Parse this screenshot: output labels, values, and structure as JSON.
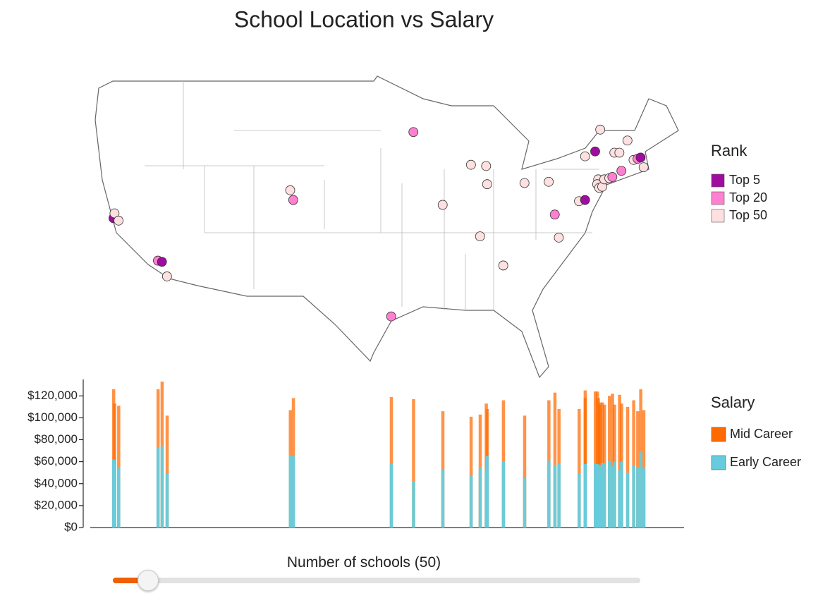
{
  "title": "School Location vs Salary",
  "map": {
    "legend_title": "Rank",
    "tiers": [
      {
        "name": "Top 5",
        "color": "#a00ca0"
      },
      {
        "name": "Top 20",
        "color": "#ff80d0"
      },
      {
        "name": "Top 50",
        "color": "#ffe0e0"
      }
    ],
    "lat": [
      37.7,
      38.1,
      37.5,
      34.2,
      34.1,
      32.9,
      40.0,
      39.2,
      29.6,
      44.8,
      38.8,
      42.1,
      36.2,
      42.0,
      40.5,
      33.8,
      40.6,
      40.7,
      38.0,
      36.1,
      39.1,
      39.2,
      42.8,
      43.2,
      45.0,
      40.9,
      40.5,
      40.2,
      40.3,
      40.9,
      41.0,
      41.1,
      43.1,
      43.1,
      41.6,
      44.1,
      42.5,
      42.6,
      42.7,
      41.9
    ],
    "tier": [
      0,
      2,
      2,
      1,
      0,
      2,
      2,
      1,
      1,
      1,
      2,
      2,
      2,
      2,
      2,
      2,
      2,
      2,
      1,
      2,
      2,
      0,
      2,
      0,
      2,
      2,
      2,
      2,
      2,
      2,
      2,
      1,
      2,
      2,
      1,
      2,
      2,
      1,
      0,
      2
    ]
  },
  "chart_data": {
    "type": "bar",
    "legend_title": "Salary",
    "x": [
      -123.0,
      -122.9,
      -122.5,
      -118.6,
      -118.2,
      -117.7,
      -105.5,
      -105.2,
      -95.5,
      -93.3,
      -90.4,
      -87.6,
      -86.7,
      -86.1,
      -86.0,
      -84.4,
      -82.3,
      -79.9,
      -79.3,
      -78.9,
      -76.9,
      -76.3,
      -76.3,
      -75.3,
      -74.8,
      -75.0,
      -75.1,
      -74.9,
      -74.6,
      -74.4,
      -73.9,
      -73.6,
      -73.4,
      -72.9,
      -72.7,
      -72.1,
      -71.5,
      -71.1,
      -70.8,
      -70.5
    ],
    "xlim": [
      -125.3,
      -66.5
    ],
    "series": [
      {
        "name": "Mid Career",
        "color": "#ff6a00",
        "values": [
          126000,
          113000,
          111000,
          126000,
          133000,
          102000,
          107000,
          118000,
          119000,
          117000,
          106000,
          101000,
          103000,
          113000,
          108000,
          116000,
          102000,
          116000,
          123000,
          108000,
          108000,
          125000,
          118000,
          124000,
          114000,
          118000,
          124000,
          112000,
          114000,
          112000,
          120000,
          122000,
          112000,
          121000,
          113000,
          110000,
          116000,
          106000,
          126000,
          107000
        ]
      },
      {
        "name": "Early Career",
        "color": "#66ccdd",
        "values": [
          62000,
          58000,
          55000,
          73000,
          74000,
          49000,
          66000,
          65000,
          58000,
          42000,
          53000,
          47000,
          55000,
          52000,
          65000,
          60000,
          45000,
          61000,
          57000,
          58000,
          49000,
          56000,
          58000,
          58000,
          57000,
          51000,
          58000,
          50000,
          59000,
          58000,
          61000,
          56000,
          60000,
          52000,
          60000,
          50000,
          57000,
          55000,
          69000,
          54000
        ]
      }
    ],
    "ylim": [
      0,
      135000
    ],
    "yticks": [
      {
        "value": 0,
        "label": "$0"
      },
      {
        "value": 20000,
        "label": "$20,000"
      },
      {
        "value": 40000,
        "label": "$40,000"
      },
      {
        "value": 60000,
        "label": "$60,000"
      },
      {
        "value": 80000,
        "label": "$80,000"
      },
      {
        "value": 100000,
        "label": "$100,000"
      },
      {
        "value": 120000,
        "label": "$120,000"
      }
    ]
  },
  "slider": {
    "label": "Number of schools (50)"
  }
}
